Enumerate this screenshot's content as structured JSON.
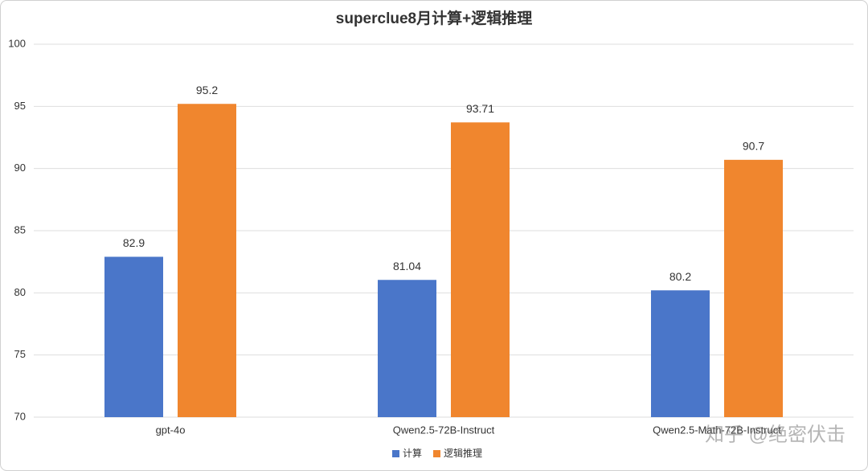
{
  "chart_data": {
    "type": "bar",
    "title": "superclue8月计算+逻辑推理",
    "categories": [
      "gpt-4o",
      "Qwen2.5-72B-Instruct",
      "Qwen2.5-Math-72B-Instruct"
    ],
    "series": [
      {
        "name": "计算",
        "color": "#4a76c9",
        "values": [
          82.9,
          81.04,
          80.2
        ]
      },
      {
        "name": "逻辑推理",
        "color": "#f0862e",
        "values": [
          95.2,
          93.71,
          90.7
        ]
      }
    ],
    "ylim": [
      70,
      100
    ],
    "yticks": [
      70,
      75,
      80,
      85,
      90,
      95,
      100
    ],
    "grid": true,
    "legend": "bottom",
    "watermark": "知乎 @绝密伏击"
  }
}
